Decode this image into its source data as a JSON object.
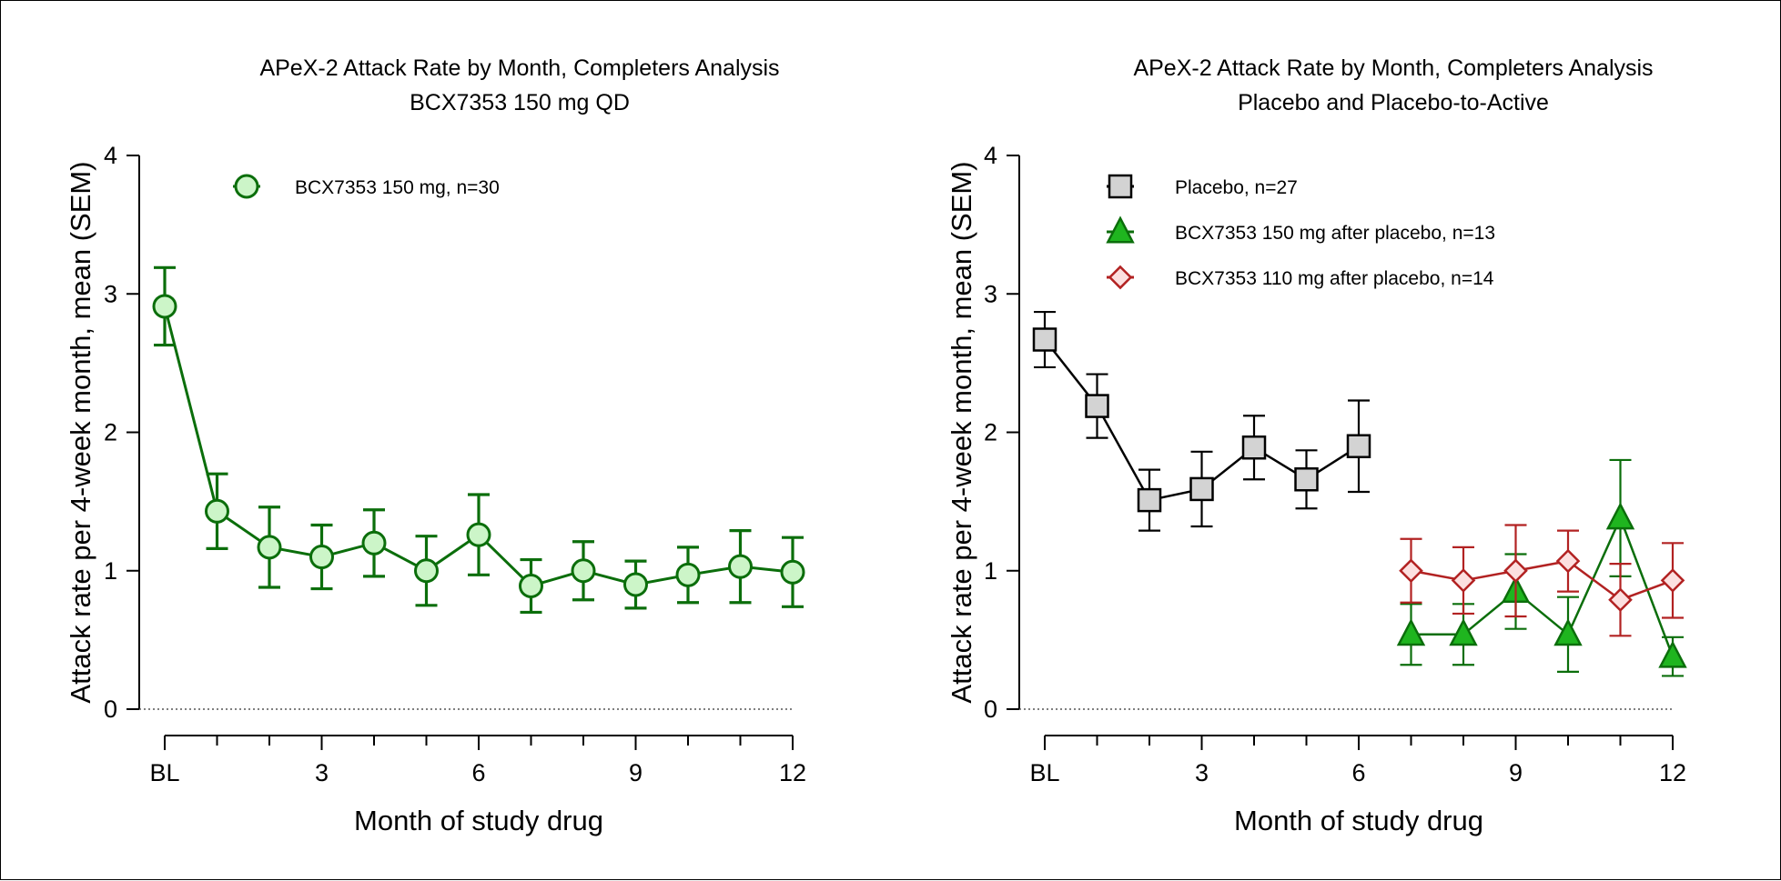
{
  "chart_data": [
    {
      "type": "line",
      "title_lines": [
        "APeX-2 Attack Rate by Month, Completers Analysis",
        "BCX7353 150 mg QD"
      ],
      "xlabel": "Month of study drug",
      "ylabel": "Attack rate per 4-week month, mean (SEM)",
      "xlim": [
        0,
        12
      ],
      "ylim": [
        0,
        4
      ],
      "x_ticks": [
        0,
        1,
        2,
        3,
        4,
        5,
        6,
        7,
        8,
        9,
        10,
        11,
        12
      ],
      "x_tick_labels": [
        {
          "x": 0,
          "label": "BL"
        },
        {
          "x": 3,
          "label": "3"
        },
        {
          "x": 6,
          "label": "6"
        },
        {
          "x": 9,
          "label": "9"
        },
        {
          "x": 12,
          "label": "12"
        }
      ],
      "y_ticks": [
        0,
        1,
        2,
        3,
        4
      ],
      "y_tick_labels": [
        "0",
        "1",
        "2",
        "3",
        "4"
      ],
      "reference_line": {
        "y": 0,
        "style": "dotted"
      },
      "legend_position": "top-center",
      "series": [
        {
          "name": "BCX7353 150 mg, n=30",
          "marker": "circle",
          "color": "#0B6E0B",
          "fill": "#CCF5C8",
          "x": [
            0,
            1,
            2,
            3,
            4,
            5,
            6,
            7,
            8,
            9,
            10,
            11,
            12
          ],
          "y": [
            2.91,
            1.43,
            1.17,
            1.1,
            1.2,
            1.0,
            1.26,
            0.89,
            1.0,
            0.9,
            0.97,
            1.03,
            0.99
          ],
          "sem": [
            0.28,
            0.27,
            0.29,
            0.23,
            0.24,
            0.25,
            0.29,
            0.19,
            0.21,
            0.17,
            0.2,
            0.26,
            0.25
          ]
        }
      ]
    },
    {
      "type": "line",
      "title_lines": [
        "APeX-2 Attack Rate by Month, Completers Analysis",
        "Placebo and Placebo-to-Active"
      ],
      "xlabel": "Month of study drug",
      "ylabel": "Attack rate per 4-week month, mean (SEM)",
      "xlim": [
        0,
        12
      ],
      "ylim": [
        0,
        4
      ],
      "x_ticks": [
        0,
        1,
        2,
        3,
        4,
        5,
        6,
        7,
        8,
        9,
        10,
        11,
        12
      ],
      "x_tick_labels": [
        {
          "x": 0,
          "label": "BL"
        },
        {
          "x": 3,
          "label": "3"
        },
        {
          "x": 6,
          "label": "6"
        },
        {
          "x": 9,
          "label": "9"
        },
        {
          "x": 12,
          "label": "12"
        }
      ],
      "y_ticks": [
        0,
        1,
        2,
        3,
        4
      ],
      "y_tick_labels": [
        "0",
        "1",
        "2",
        "3",
        "4"
      ],
      "reference_line": {
        "y": 0,
        "style": "dotted"
      },
      "legend_position": "top-left",
      "series": [
        {
          "name": "Placebo, n=27",
          "marker": "square",
          "color": "#000000",
          "fill": "#D3D3D3",
          "x": [
            0,
            1,
            2,
            3,
            4,
            5,
            6
          ],
          "y": [
            2.67,
            2.19,
            1.51,
            1.59,
            1.89,
            1.66,
            1.9
          ],
          "sem": [
            0.2,
            0.23,
            0.22,
            0.27,
            0.23,
            0.21,
            0.33
          ]
        },
        {
          "name": "BCX7353 150 mg after placebo, n=13",
          "marker": "triangle",
          "color": "#0B6E0B",
          "fill": "#1FB51F",
          "x": [
            7,
            8,
            9,
            10,
            11,
            12
          ],
          "y": [
            0.54,
            0.54,
            0.85,
            0.54,
            1.38,
            0.38
          ],
          "sem": [
            0.22,
            0.22,
            0.27,
            0.27,
            0.42,
            0.14
          ]
        },
        {
          "name": "BCX7353 110 mg after placebo, n=14",
          "marker": "diamond",
          "color": "#B22222",
          "fill": "#FCE0E0",
          "x": [
            7,
            8,
            9,
            10,
            11,
            12
          ],
          "y": [
            1.0,
            0.93,
            1.0,
            1.07,
            0.79,
            0.93
          ],
          "sem": [
            0.23,
            0.24,
            0.33,
            0.22,
            0.26,
            0.27
          ]
        }
      ]
    }
  ]
}
